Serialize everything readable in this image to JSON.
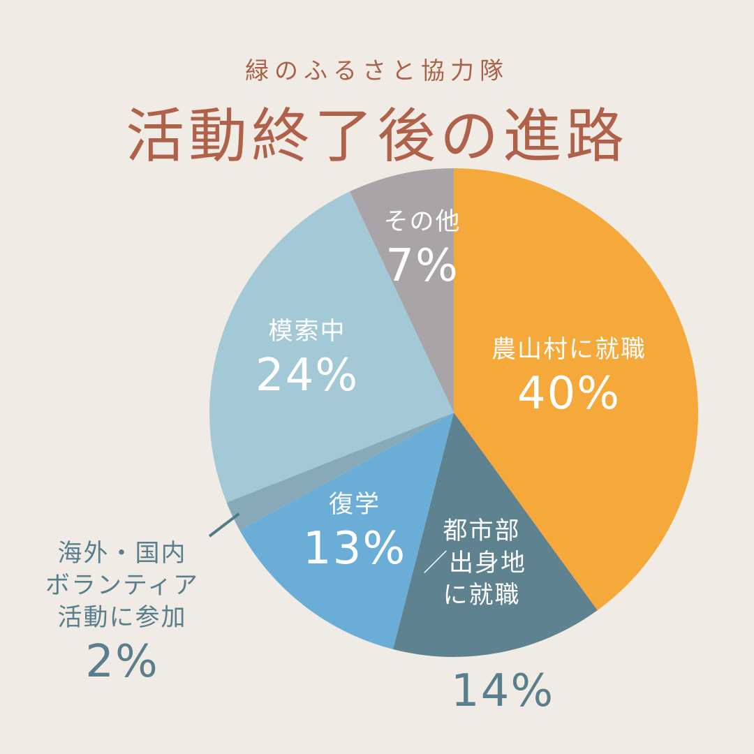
{
  "subtitle": "緑のふるさと協力隊",
  "title": "活動終了後の進路",
  "chart_data": {
    "type": "pie",
    "start": "top",
    "direction": "clockwise",
    "slices": [
      {
        "label": "農山村に就職",
        "value": 40,
        "value_label": "40%",
        "color": "#F5A93A"
      },
      {
        "label": "都市部／出身地に就職",
        "label_lines": [
          "都市部",
          "／出身地",
          "に就職"
        ],
        "value": 14,
        "value_label": "14%",
        "color": "#5E8290"
      },
      {
        "label": "復学",
        "value": 13,
        "value_label": "13%",
        "color": "#6AAED8"
      },
      {
        "label": "海外・国内ボランティア活動に参加",
        "label_lines": [
          "海外・国内",
          "ボランティア",
          "活動に参加"
        ],
        "value": 2,
        "value_label": "2%",
        "color": "#88AAB8"
      },
      {
        "label": "模索中",
        "value": 24,
        "value_label": "24%",
        "color": "#A3C8D6"
      },
      {
        "label": "その他",
        "value": 7,
        "value_label": "7%",
        "color": "#A9A4A7"
      }
    ]
  }
}
